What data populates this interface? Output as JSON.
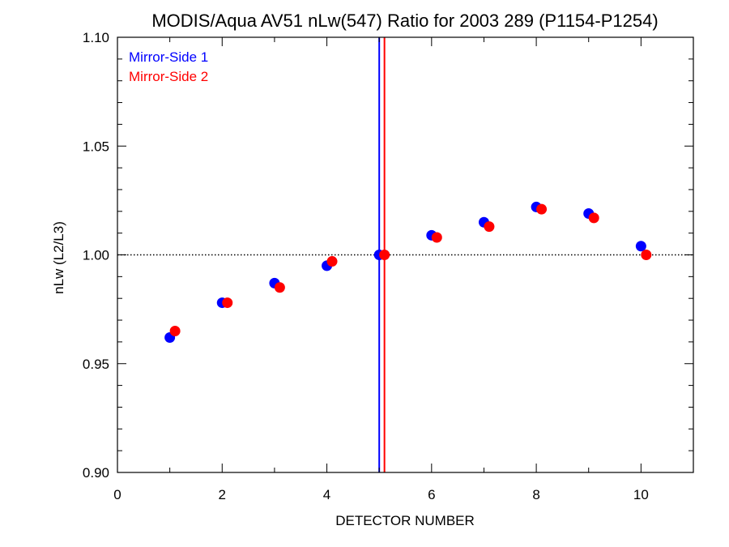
{
  "chart_data": {
    "type": "scatter",
    "title": "MODIS/Aqua AV51 nLw(547) Ratio for 2003 289 (P1154-P1254)",
    "xlabel": "DETECTOR NUMBER",
    "ylabel": "nLw (L2/L3)",
    "xlim": [
      0,
      11
    ],
    "ylim": [
      0.9,
      1.1
    ],
    "x_ticks": [
      0,
      2,
      4,
      6,
      8,
      10
    ],
    "x_tick_labels": [
      "0",
      "2",
      "4",
      "6",
      "8",
      "10"
    ],
    "y_ticks": [
      0.9,
      0.95,
      1.0,
      1.05,
      1.1
    ],
    "y_tick_labels": [
      "0.90",
      "0.95",
      "1.00",
      "1.05",
      "1.10"
    ],
    "reference_line": {
      "y": 1.0,
      "style": "dotted"
    },
    "vertical_lines": [
      {
        "x": 5.0,
        "color": "#0000ff"
      },
      {
        "x": 5.1,
        "color": "#ff0000"
      }
    ],
    "legend_position": "top-left",
    "series": [
      {
        "name": "Mirror-Side 1",
        "color": "#0000ff",
        "x": [
          1,
          2,
          3,
          4,
          5,
          6,
          7,
          8,
          9,
          10
        ],
        "y": [
          0.962,
          0.978,
          0.987,
          0.995,
          1.0,
          1.009,
          1.015,
          1.022,
          1.019,
          1.004
        ]
      },
      {
        "name": "Mirror-Side 2",
        "color": "#ff0000",
        "x": [
          1.1,
          2.1,
          3.1,
          4.1,
          5.1,
          6.1,
          7.1,
          8.1,
          9.1,
          10.1
        ],
        "y": [
          0.965,
          0.978,
          0.985,
          0.997,
          1.0,
          1.008,
          1.013,
          1.021,
          1.017,
          1.0
        ]
      }
    ]
  }
}
